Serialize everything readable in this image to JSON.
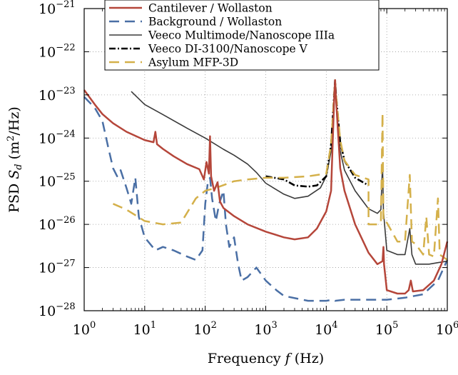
{
  "chart_data": {
    "type": "line",
    "xlabel": "Frequency f (Hz)",
    "ylabel": "PSD Sd (m2/Hz)",
    "xlabel_parts": [
      "Frequency ",
      "f",
      " (Hz)"
    ],
    "ylabel_parts": [
      "PSD ",
      "S",
      "d",
      " (m",
      "2",
      "/Hz)"
    ],
    "x_scale": "log",
    "y_scale": "log",
    "xlim": [
      1,
      1000000
    ],
    "ylim": [
      1e-28,
      1e-21
    ],
    "grid": true,
    "legend_position": "top-right",
    "x_ticks": [
      {
        "value": 1,
        "base": "10",
        "exp": "0"
      },
      {
        "value": 10,
        "base": "10",
        "exp": "1"
      },
      {
        "value": 100,
        "base": "10",
        "exp": "2"
      },
      {
        "value": 1000,
        "base": "10",
        "exp": "3"
      },
      {
        "value": 10000,
        "base": "10",
        "exp": "4"
      },
      {
        "value": 100000,
        "base": "10",
        "exp": "5"
      },
      {
        "value": 1000000,
        "base": "10",
        "exp": "6"
      }
    ],
    "y_ticks": [
      {
        "value": 1e-28,
        "base": "10",
        "exp": "−28"
      },
      {
        "value": 1e-27,
        "base": "10",
        "exp": "−27"
      },
      {
        "value": 1e-26,
        "base": "10",
        "exp": "−26"
      },
      {
        "value": 1e-25,
        "base": "10",
        "exp": "−25"
      },
      {
        "value": 1e-24,
        "base": "10",
        "exp": "−24"
      },
      {
        "value": 1e-23,
        "base": "10",
        "exp": "−23"
      },
      {
        "value": 1e-22,
        "base": "10",
        "exp": "−22"
      },
      {
        "value": 1e-21,
        "base": "10",
        "exp": "−21"
      }
    ],
    "series": [
      {
        "name": "Cantilever / Wollaston",
        "color": "#b5463a",
        "style": "solid",
        "points": [
          [
            1,
            1.3e-23
          ],
          [
            1.5,
            6e-24
          ],
          [
            2,
            3.6e-24
          ],
          [
            3,
            2.2e-24
          ],
          [
            5,
            1.4e-24
          ],
          [
            10,
            9e-25
          ],
          [
            14,
            8e-25
          ],
          [
            15,
            1.4e-24
          ],
          [
            16,
            7.2e-25
          ],
          [
            20,
            5.6e-25
          ],
          [
            30,
            3.8e-25
          ],
          [
            50,
            2.5e-25
          ],
          [
            80,
            1.9e-25
          ],
          [
            95,
            1.1e-25
          ],
          [
            105,
            2.8e-25
          ],
          [
            115,
            1.5e-25
          ],
          [
            120,
            1.1e-24
          ],
          [
            125,
            1.3e-25
          ],
          [
            140,
            6e-26
          ],
          [
            160,
            9.5e-26
          ],
          [
            175,
            3.4e-26
          ],
          [
            200,
            2.4e-26
          ],
          [
            300,
            1.55e-26
          ],
          [
            500,
            1e-26
          ],
          [
            1000,
            6.8e-27
          ],
          [
            2000,
            5e-27
          ],
          [
            3000,
            4.5e-27
          ],
          [
            5000,
            5e-27
          ],
          [
            7000,
            8e-27
          ],
          [
            10000,
            2e-26
          ],
          [
            12000,
            6e-26
          ],
          [
            13500,
            8e-24
          ],
          [
            14000,
            2.2e-23
          ],
          [
            14500,
            8e-24
          ],
          [
            17000,
            2e-25
          ],
          [
            20000,
            6e-26
          ],
          [
            30000,
            1e-26
          ],
          [
            50000,
            2.2e-27
          ],
          [
            70000,
            1.2e-27
          ],
          [
            85000,
            1.4e-27
          ],
          [
            88000,
            3e-27
          ],
          [
            90000,
            1.2e-27
          ],
          [
            100000,
            3e-28
          ],
          [
            150000,
            2.5e-28
          ],
          [
            200000,
            2.5e-28
          ],
          [
            230000,
            3e-28
          ],
          [
            250000,
            5e-28
          ],
          [
            270000,
            2.8e-28
          ],
          [
            400000,
            3e-28
          ],
          [
            600000,
            5e-28
          ],
          [
            800000,
            1.2e-27
          ],
          [
            1000000,
            4e-27
          ]
        ]
      },
      {
        "name": "Background / Wollaston",
        "color": "#4a6fa5",
        "style": "dashed",
        "points": [
          [
            1,
            9e-24
          ],
          [
            1.5,
            5e-24
          ],
          [
            2,
            2.5e-24
          ],
          [
            2.5,
            6e-25
          ],
          [
            3,
            2e-25
          ],
          [
            3.5,
            1.3e-25
          ],
          [
            4,
            1.8e-25
          ],
          [
            5,
            7e-26
          ],
          [
            6,
            3e-26
          ],
          [
            7,
            1.2e-25
          ],
          [
            8,
            1.5e-26
          ],
          [
            10,
            5e-27
          ],
          [
            15,
            2.5e-27
          ],
          [
            20,
            3e-27
          ],
          [
            30,
            2.5e-27
          ],
          [
            50,
            1.8e-27
          ],
          [
            70,
            1.5e-27
          ],
          [
            90,
            2.5e-27
          ],
          [
            100,
            3e-26
          ],
          [
            110,
            9e-26
          ],
          [
            120,
            1.2e-25
          ],
          [
            130,
            4e-26
          ],
          [
            150,
            1.2e-26
          ],
          [
            170,
            3e-26
          ],
          [
            200,
            6e-26
          ],
          [
            220,
            1e-26
          ],
          [
            250,
            3e-27
          ],
          [
            300,
            5e-27
          ],
          [
            350,
            1.2e-27
          ],
          [
            400,
            5e-28
          ],
          [
            500,
            6e-28
          ],
          [
            700,
            1e-27
          ],
          [
            1000,
            5e-28
          ],
          [
            1500,
            3e-28
          ],
          [
            2000,
            2.2e-28
          ],
          [
            5000,
            1.7e-28
          ],
          [
            10000,
            1.7e-28
          ],
          [
            13000,
            1.8e-28
          ],
          [
            14000,
            1.7e-28
          ],
          [
            20000,
            1.8e-28
          ],
          [
            50000,
            1.8e-28
          ],
          [
            100000,
            1.8e-28
          ],
          [
            200000,
            2e-28
          ],
          [
            400000,
            2.4e-28
          ],
          [
            700000,
            5e-28
          ],
          [
            1000000,
            1.5e-27
          ]
        ]
      },
      {
        "name": "Veeco Multimode/Nanoscope IIIa",
        "color": "#3a3a3a",
        "style": "solid",
        "points": [
          [
            6,
            1.2e-23
          ],
          [
            10,
            6e-24
          ],
          [
            20,
            3.5e-24
          ],
          [
            50,
            1.7e-24
          ],
          [
            100,
            1e-24
          ],
          [
            200,
            5.5e-25
          ],
          [
            300,
            4e-25
          ],
          [
            500,
            2.5e-25
          ],
          [
            700,
            1.6e-25
          ],
          [
            1000,
            9e-26
          ],
          [
            2000,
            5e-26
          ],
          [
            3000,
            4e-26
          ],
          [
            5000,
            4.5e-26
          ],
          [
            8000,
            7e-26
          ],
          [
            10000,
            1.3e-25
          ],
          [
            12000,
            5e-25
          ],
          [
            13500,
            7e-24
          ],
          [
            14000,
            2.2e-23
          ],
          [
            14500,
            7e-24
          ],
          [
            17000,
            5e-25
          ],
          [
            20000,
            1.8e-25
          ],
          [
            30000,
            6e-26
          ],
          [
            50000,
            2.3e-26
          ],
          [
            70000,
            1.8e-26
          ],
          [
            80000,
            2.2e-26
          ],
          [
            85000,
            2.6e-25
          ],
          [
            88000,
            2e-26
          ],
          [
            100000,
            2.5e-27
          ],
          [
            150000,
            2e-27
          ],
          [
            200000,
            2e-27
          ],
          [
            240000,
            8e-27
          ],
          [
            260000,
            2e-27
          ],
          [
            300000,
            1.2e-27
          ],
          [
            500000,
            1.2e-27
          ],
          [
            700000,
            1.3e-27
          ],
          [
            1000000,
            1.4e-27
          ]
        ]
      },
      {
        "name": "Veeco DI-3100/Nanoscope V",
        "color": "#000000",
        "style": "dashdot",
        "points": [
          [
            1000,
            1.3e-25
          ],
          [
            2000,
            1.1e-25
          ],
          [
            3000,
            8e-26
          ],
          [
            5000,
            7.5e-26
          ],
          [
            7000,
            8e-26
          ],
          [
            10000,
            1.3e-25
          ],
          [
            12000,
            7e-25
          ],
          [
            13500,
            1e-23
          ],
          [
            14000,
            2.2e-23
          ],
          [
            14500,
            1e-23
          ],
          [
            17000,
            8e-25
          ],
          [
            20000,
            3e-25
          ],
          [
            30000,
            1.2e-25
          ],
          [
            50000,
            8e-26
          ]
        ]
      },
      {
        "name": "Asylum MFP-3D",
        "color": "#d4b04a",
        "style": "dashed",
        "points": [
          [
            3,
            3e-26
          ],
          [
            5,
            2.2e-26
          ],
          [
            10,
            1.2e-26
          ],
          [
            20,
            1e-26
          ],
          [
            40,
            1.1e-26
          ],
          [
            70,
            4e-26
          ],
          [
            100,
            6e-26
          ],
          [
            150,
            7e-26
          ],
          [
            300,
            1e-25
          ],
          [
            500,
            1.1e-25
          ],
          [
            1000,
            1.2e-25
          ],
          [
            2000,
            1.2e-25
          ],
          [
            5000,
            1.3e-25
          ],
          [
            10000,
            1.5e-25
          ],
          [
            12000,
            7e-25
          ],
          [
            13500,
            1e-23
          ],
          [
            14000,
            2.2e-23
          ],
          [
            14500,
            1e-23
          ],
          [
            17000,
            9e-25
          ],
          [
            20000,
            3e-25
          ],
          [
            30000,
            1.4e-25
          ],
          [
            50000,
            1.1e-25
          ],
          [
            50000,
            1e-26
          ],
          [
            70000,
            1e-26
          ],
          [
            80000,
            1.1e-26
          ],
          [
            85000,
            3.8e-24
          ],
          [
            88000,
            1.1e-26
          ],
          [
            100000,
            1.1e-26
          ],
          [
            150000,
            4e-27
          ],
          [
            200000,
            4e-27
          ],
          [
            240000,
            1.4e-25
          ],
          [
            260000,
            4e-27
          ],
          [
            300000,
            3.5e-27
          ],
          [
            400000,
            2e-27
          ],
          [
            450000,
            1.5e-26
          ],
          [
            500000,
            2e-27
          ],
          [
            600000,
            1.8e-27
          ],
          [
            700000,
            4e-26
          ],
          [
            750000,
            2e-27
          ],
          [
            1000000,
            1.5e-27
          ]
        ]
      }
    ]
  }
}
